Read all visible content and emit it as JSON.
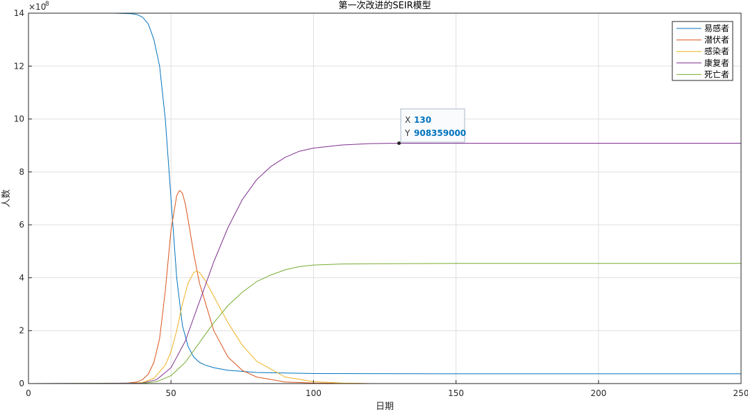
{
  "chart_data": {
    "type": "line",
    "title": "第一次改进的SEIR模型",
    "xlabel": "日期",
    "ylabel": "人数",
    "xlim": [
      0,
      250
    ],
    "ylim": [
      0,
      14
    ],
    "y_exponent_label": "×10",
    "y_exponent_power": "8",
    "xticks": [
      "0",
      "50",
      "100",
      "150",
      "200",
      "250"
    ],
    "yticks": [
      "0",
      "2",
      "4",
      "6",
      "8",
      "10",
      "12",
      "14"
    ],
    "grid": true,
    "legend_position": "top-right",
    "series": [
      {
        "name": "易感者",
        "color": "#0072BD",
        "x": [
          0,
          30,
          36,
          38,
          40,
          42,
          44,
          46,
          48,
          50,
          52,
          54,
          56,
          58,
          60,
          62,
          65,
          70,
          80,
          100,
          150,
          250
        ],
        "values": [
          14.0,
          14.0,
          13.98,
          13.95,
          13.85,
          13.6,
          13.0,
          12.0,
          10.0,
          7.0,
          4.0,
          2.2,
          1.4,
          1.0,
          0.8,
          0.7,
          0.6,
          0.5,
          0.42,
          0.38,
          0.37,
          0.37
        ]
      },
      {
        "name": "潜伏者",
        "color": "#D95319",
        "x": [
          0,
          30,
          35,
          38,
          40,
          42,
          44,
          46,
          48,
          50,
          52,
          53,
          54,
          55,
          56,
          58,
          60,
          65,
          70,
          75,
          80,
          90,
          100,
          120,
          250
        ],
        "values": [
          0,
          0,
          0.02,
          0.06,
          0.15,
          0.35,
          0.8,
          1.7,
          3.5,
          5.8,
          7.1,
          7.3,
          7.2,
          6.8,
          6.2,
          4.9,
          3.8,
          2.0,
          1.0,
          0.5,
          0.25,
          0.06,
          0.02,
          0.0,
          0.0
        ]
      },
      {
        "name": "感染者",
        "color": "#EDB120",
        "x": [
          0,
          35,
          40,
          44,
          48,
          50,
          52,
          54,
          56,
          58,
          59,
          60,
          62,
          65,
          70,
          75,
          80,
          90,
          100,
          110,
          120,
          250
        ],
        "values": [
          0,
          0,
          0.04,
          0.2,
          0.7,
          1.2,
          2.0,
          3.0,
          3.8,
          4.2,
          4.25,
          4.2,
          3.9,
          3.3,
          2.3,
          1.45,
          0.85,
          0.25,
          0.07,
          0.02,
          0.0,
          0.0
        ]
      },
      {
        "name": "康复者",
        "color": "#7E2F8E",
        "x": [
          0,
          40,
          45,
          50,
          55,
          60,
          65,
          70,
          75,
          80,
          85,
          90,
          95,
          100,
          110,
          120,
          130,
          150,
          200,
          250
        ],
        "values": [
          0,
          0.02,
          0.15,
          0.6,
          1.6,
          3.1,
          4.6,
          5.9,
          6.95,
          7.7,
          8.2,
          8.55,
          8.78,
          8.9,
          9.02,
          9.07,
          9.08359,
          9.085,
          9.085,
          9.085
        ]
      },
      {
        "name": "死亡者",
        "color": "#77AC30",
        "x": [
          0,
          40,
          45,
          50,
          55,
          60,
          65,
          70,
          75,
          80,
          85,
          90,
          95,
          100,
          110,
          120,
          150,
          200,
          250
        ],
        "values": [
          0,
          0.01,
          0.07,
          0.3,
          0.8,
          1.55,
          2.3,
          2.95,
          3.45,
          3.85,
          4.1,
          4.3,
          4.42,
          4.48,
          4.52,
          4.53,
          4.54,
          4.54,
          4.54
        ]
      }
    ],
    "datatip": {
      "x_label": "X",
      "x_value": "130",
      "y_label": "Y",
      "y_value": "908359000",
      "x": 130,
      "y": 9.08359
    }
  }
}
